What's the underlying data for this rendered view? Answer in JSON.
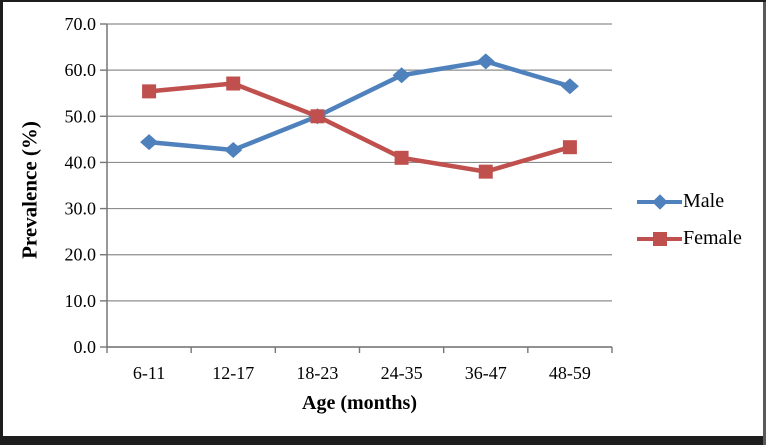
{
  "chart_data": {
    "type": "line",
    "title": "",
    "xlabel": "Age (months)",
    "ylabel": "Prevalence (%)",
    "categories": [
      "6-11",
      "12-17",
      "18-23",
      "24-35",
      "36-47",
      "48-59"
    ],
    "series": [
      {
        "name": "Male",
        "marker": "diamond",
        "color": "#4F81BD",
        "values": [
          44.4,
          42.7,
          50.0,
          58.9,
          61.9,
          56.5
        ]
      },
      {
        "name": "Female",
        "marker": "square",
        "color": "#C0504D",
        "values": [
          55.4,
          57.1,
          50.0,
          41.0,
          38.0,
          43.3
        ]
      }
    ],
    "ylim": [
      0,
      70
    ],
    "ytick_step": 10,
    "ytick_labels": [
      "0.0",
      "10.0",
      "20.0",
      "30.0",
      "40.0",
      "50.0",
      "60.0",
      "70.0"
    ],
    "grid": "horizontal-on",
    "legend_position": "right",
    "gridline_color": "#8e8e8e",
    "axis_color": "#767676",
    "text_color": "#000000"
  }
}
